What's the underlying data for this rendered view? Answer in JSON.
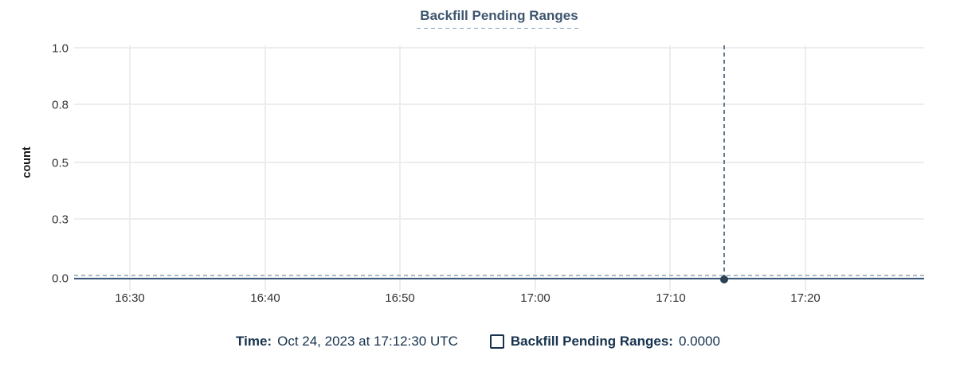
{
  "title": "Backfill Pending Ranges",
  "chart_data": {
    "type": "line",
    "title": "Backfill Pending Ranges",
    "xlabel": "",
    "ylabel": "count",
    "x_tick_labels": [
      "16:30",
      "16:40",
      "16:50",
      "17:00",
      "17:10",
      "17:20"
    ],
    "y_tick_labels": [
      "1.0",
      "0.8",
      "0.5",
      "0.3",
      "0.0"
    ],
    "ylim": [
      0,
      1
    ],
    "grid": true,
    "legend_position": "bottom",
    "series": [
      {
        "name": "Backfill Pending Ranges",
        "x": [
          "16:30",
          "16:40",
          "16:50",
          "17:00",
          "17:10",
          "17:20"
        ],
        "values": [
          0,
          0,
          0,
          0,
          0,
          0
        ],
        "color": "#3f5c7e"
      }
    ],
    "hover_point": {
      "time": "17:12:30",
      "value": 0.0
    }
  },
  "legend": {
    "time_label": "Time:",
    "time_value": "Oct 24, 2023 at 17:12:30 UTC",
    "series_label": "Backfill Pending Ranges:",
    "series_value": "0.0000",
    "checkbox_checked": false
  },
  "colors": {
    "title": "#3e5670",
    "axis_text": "#333333",
    "gridline": "#ededed",
    "series_line": "#3f5c7e",
    "point_marker": "#2b4156",
    "crosshair_vertical": "#64788e",
    "crosshair_horizontal": "#a9bac7",
    "legend_text": "#16324d"
  }
}
